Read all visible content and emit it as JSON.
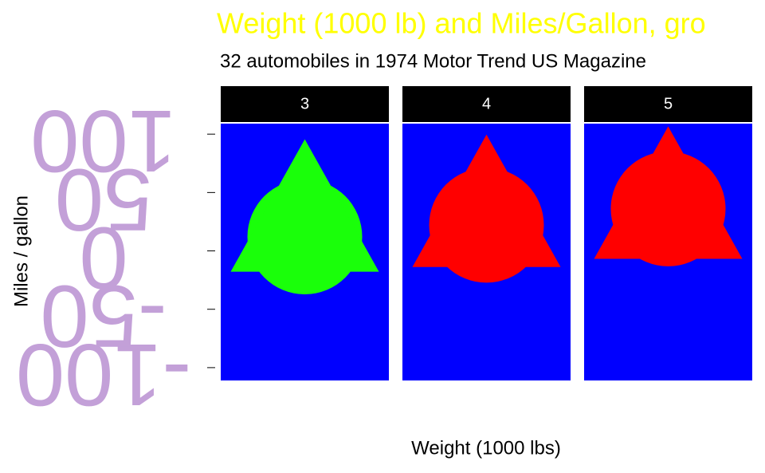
{
  "chart_data": {
    "type": "scatter",
    "title": "Weight (1000 lb) and Miles/Gallon, gro",
    "subtitle": "32 automobiles in 1974 Motor Trend US Magazine",
    "x_label": "Weight (1000 lbs)",
    "y_label": "Miles / gallon",
    "ylim": [
      -111,
      109
    ],
    "yticks": [
      -100,
      -50,
      0,
      50,
      100
    ],
    "panels": [
      {
        "label": "3",
        "color": "#1aff0a",
        "circle": 12,
        "triangle": 20
      },
      {
        "label": "4",
        "color": "#ff0000",
        "circle": 22,
        "triangle": 24
      },
      {
        "label": "5",
        "color": "#ff0000",
        "circle": 36,
        "triangle": 31
      }
    ]
  }
}
